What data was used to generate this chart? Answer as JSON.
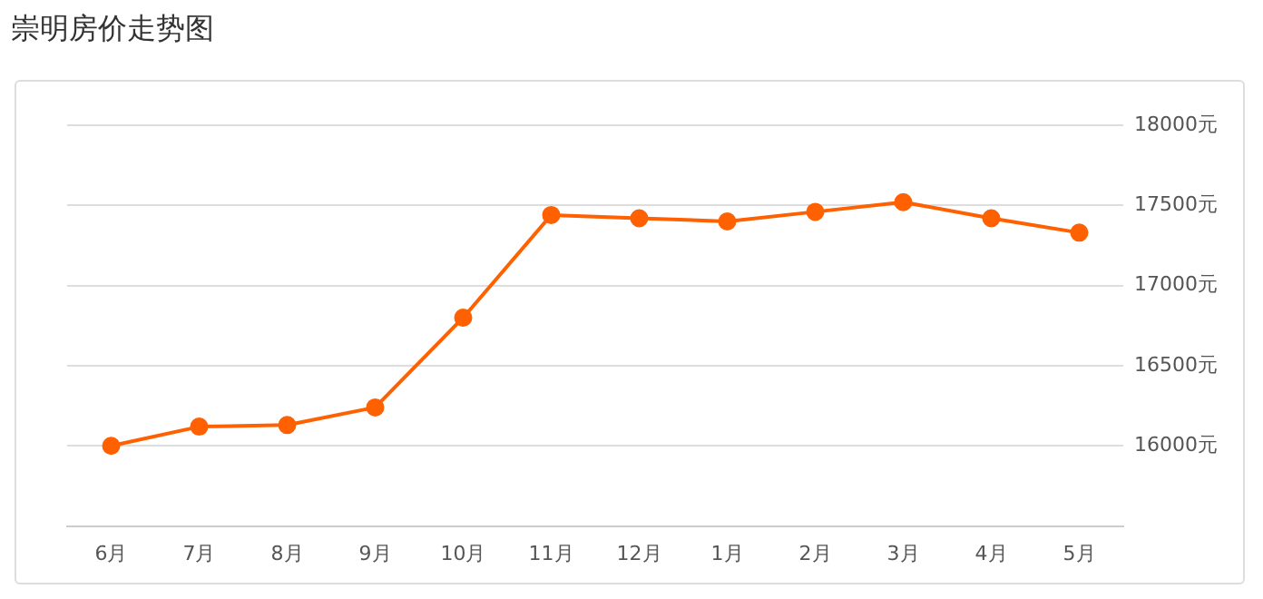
{
  "chart_data": {
    "type": "line",
    "title": "崇明房价走势图",
    "categories": [
      "6月",
      "7月",
      "8月",
      "9月",
      "10月",
      "11月",
      "12月",
      "1月",
      "2月",
      "3月",
      "4月",
      "5月"
    ],
    "series": [
      {
        "color": "#ff6000",
        "values": [
          16000,
          16120,
          16130,
          16240,
          16800,
          17440,
          17420,
          17400,
          17460,
          17520,
          17420,
          17330
        ]
      }
    ],
    "ylim": [
      15500,
      18000
    ],
    "yticks": [
      {
        "value": 16000,
        "label": "16000元"
      },
      {
        "value": 16500,
        "label": "16500元"
      },
      {
        "value": 17000,
        "label": "17000元"
      },
      {
        "value": 17500,
        "label": "17500元"
      },
      {
        "value": 18000,
        "label": "18000元"
      }
    ],
    "grid": "y",
    "legend": false,
    "marker": "circle",
    "line_style": "solid"
  }
}
